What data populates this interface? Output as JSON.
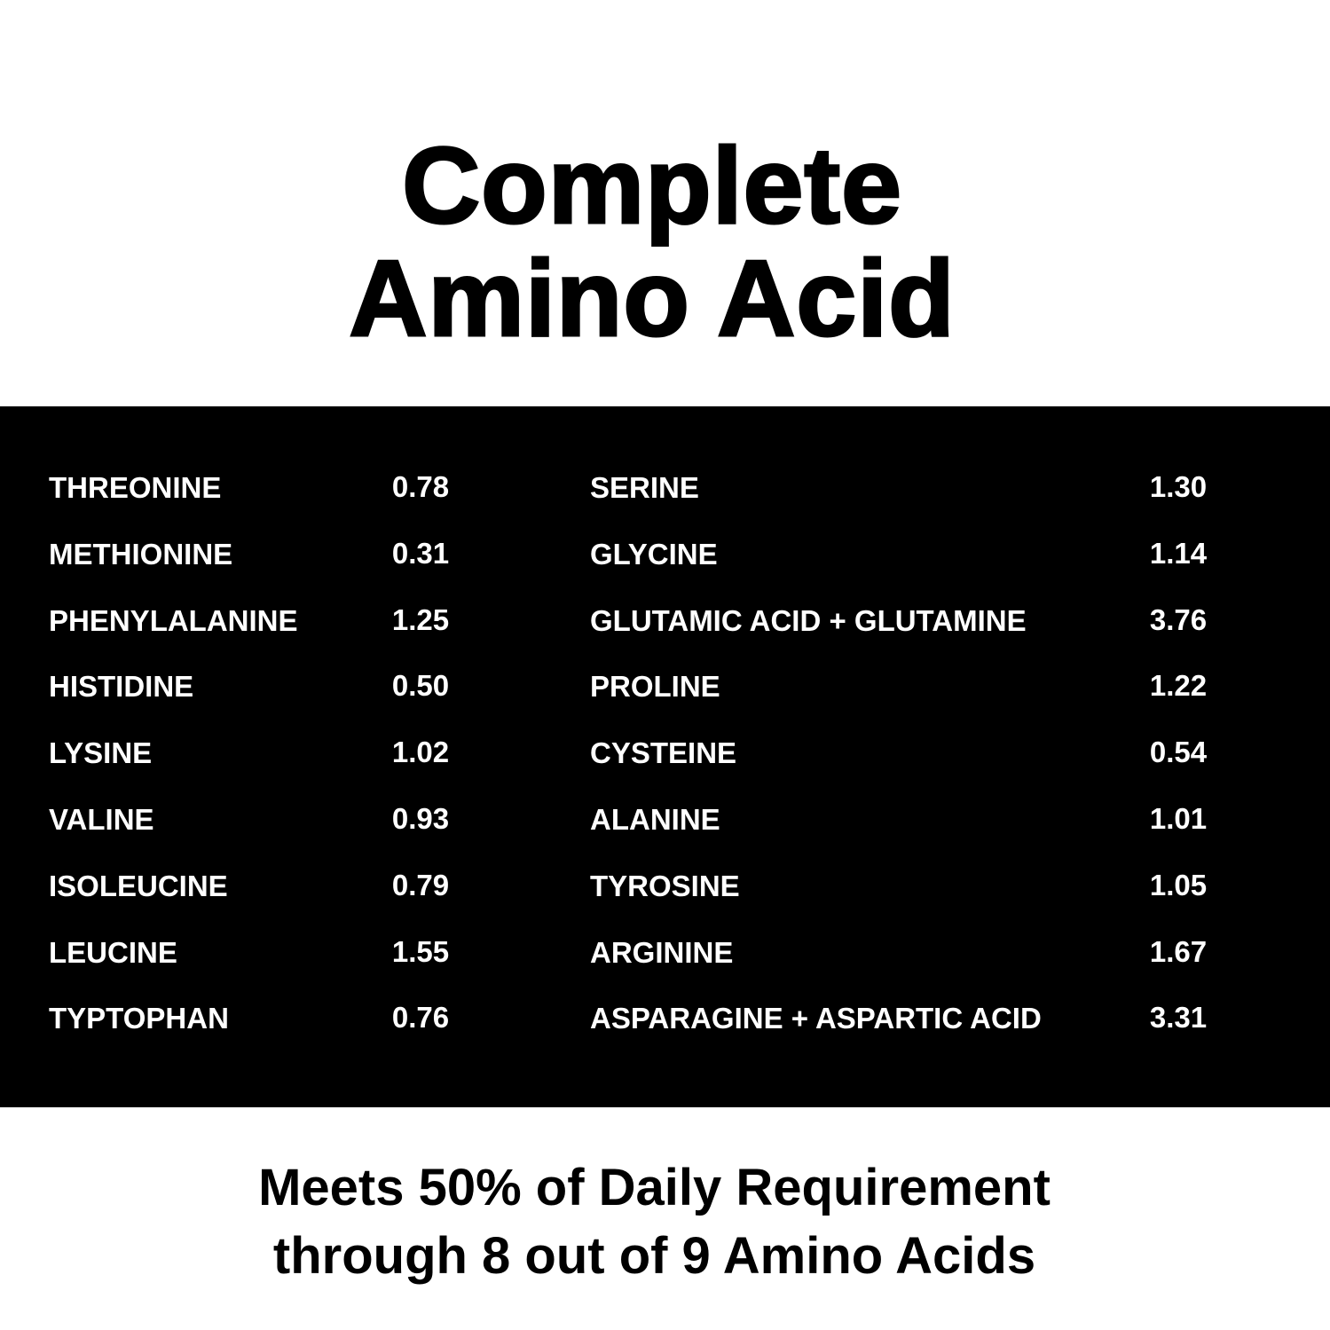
{
  "title": {
    "line1": "Complete",
    "line2": "Amino Acid"
  },
  "table": {
    "left": [
      {
        "name": "THREONINE",
        "value": "0.78"
      },
      {
        "name": "METHIONINE",
        "value": "0.31"
      },
      {
        "name": "PHENYLALANINE",
        "value": "1.25"
      },
      {
        "name": "HISTIDINE",
        "value": "0.50"
      },
      {
        "name": "LYSINE",
        "value": "1.02"
      },
      {
        "name": "VALINE",
        "value": "0.93"
      },
      {
        "name": "ISOLEUCINE",
        "value": "0.79"
      },
      {
        "name": "LEUCINE",
        "value": "1.55"
      },
      {
        "name": "TYPTOPHAN",
        "value": "0.76"
      }
    ],
    "right": [
      {
        "name": "SERINE",
        "value": "1.30"
      },
      {
        "name": "GLYCINE",
        "value": "1.14"
      },
      {
        "name": "GLUTAMIC ACID + GLUTAMINE",
        "value": "3.76"
      },
      {
        "name": "PROLINE",
        "value": "1.22"
      },
      {
        "name": "CYSTEINE",
        "value": "0.54"
      },
      {
        "name": "ALANINE",
        "value": "1.01"
      },
      {
        "name": "TYROSINE",
        "value": "1.05"
      },
      {
        "name": "ARGININE",
        "value": "1.67"
      },
      {
        "name": "ASPARAGINE + ASPARTIC ACID",
        "value": "3.31"
      }
    ]
  },
  "footer": {
    "line1": "Meets 50% of Daily Requirement",
    "line2": "through 8 out of 9 Amino Acids"
  },
  "colors": {
    "background": "#ffffff",
    "band": "#000000",
    "text_on_band": "#ffffff"
  }
}
